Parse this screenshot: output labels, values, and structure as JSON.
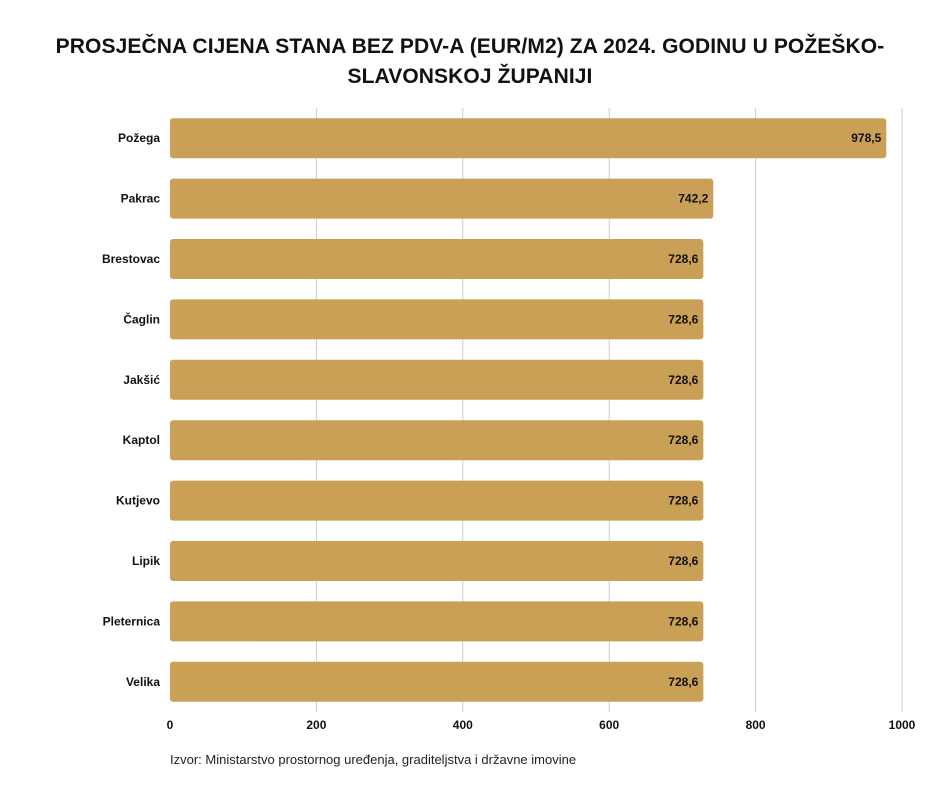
{
  "chart_data": {
    "type": "bar",
    "orientation": "horizontal",
    "title": "PROSJEČNA CIJENA STANA BEZ PDV-A (EUR/M2) ZA 2024. GODINU U POŽEŠKO-SLAVONSKOJ ŽUPANIJI",
    "categories": [
      "Požega",
      "Pakrac",
      "Brestovac",
      "Čaglin",
      "Jakšić",
      "Kaptol",
      "Kutjevo",
      "Lipik",
      "Pleternica",
      "Velika"
    ],
    "values": [
      978.5,
      742.2,
      728.6,
      728.6,
      728.6,
      728.6,
      728.6,
      728.6,
      728.6,
      728.6
    ],
    "value_labels": [
      "978,5",
      "742,2",
      "728,6",
      "728,6",
      "728,6",
      "728,6",
      "728,6",
      "728,6",
      "728,6",
      "728,6"
    ],
    "xlim": [
      0,
      1000
    ],
    "x_ticks": [
      0,
      200,
      400,
      600,
      800,
      1000
    ],
    "x_tick_labels": [
      "0",
      "200",
      "400",
      "600",
      "800",
      "1000"
    ],
    "grid": "vertical",
    "legend": "none",
    "bar_color": "#C9A055",
    "grid_color": "#CCCCCC"
  },
  "source_note": "Izvor: Ministarstvo prostornog uređenja, graditeljstva i državne imovine"
}
